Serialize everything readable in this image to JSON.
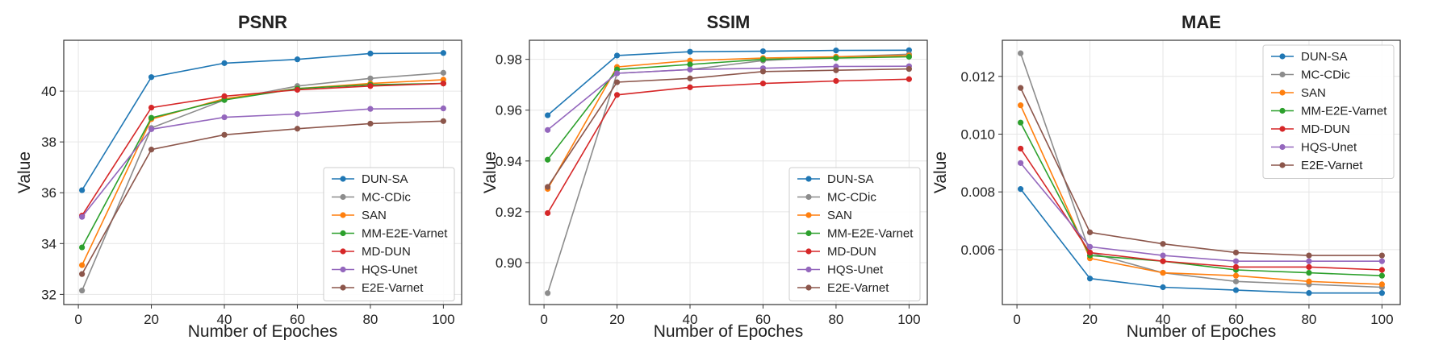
{
  "chart_data": [
    {
      "type": "line",
      "title": "PSNR",
      "xlabel": "Number of Epoches",
      "ylabel": "Value",
      "x": [
        1,
        20,
        40,
        60,
        80,
        100
      ],
      "xlim": [
        -4,
        105
      ],
      "ylim": [
        31.6,
        42.0
      ],
      "xticks": [
        0,
        20,
        40,
        60,
        80,
        100
      ],
      "yticks": [
        32,
        34,
        36,
        38,
        40
      ],
      "ytick_labels": [
        "32",
        "34",
        "36",
        "38",
        "40"
      ],
      "grid": true,
      "legend_position": "lower-right",
      "series": [
        {
          "name": "DUN-SA",
          "color": "#1f77b4",
          "values": [
            36.1,
            40.55,
            41.1,
            41.25,
            41.48,
            41.5
          ]
        },
        {
          "name": "MC-CDic",
          "color": "#8c8c8c",
          "values": [
            32.15,
            38.55,
            39.65,
            40.2,
            40.5,
            40.72
          ]
        },
        {
          "name": "SAN",
          "color": "#ff7f0e",
          "values": [
            33.15,
            38.9,
            39.7,
            40.1,
            40.3,
            40.45
          ]
        },
        {
          "name": "MM-E2E-Varnet",
          "color": "#2ca02c",
          "values": [
            33.85,
            38.95,
            39.65,
            40.1,
            40.25,
            40.3
          ]
        },
        {
          "name": "MD-DUN",
          "color": "#d62728",
          "values": [
            35.1,
            39.35,
            39.8,
            40.05,
            40.2,
            40.3
          ]
        },
        {
          "name": "HQS-Unet",
          "color": "#9467bd",
          "values": [
            35.05,
            38.5,
            38.97,
            39.1,
            39.3,
            39.32
          ]
        },
        {
          "name": "E2E-Varnet",
          "color": "#8c564b",
          "values": [
            32.8,
            37.7,
            38.28,
            38.52,
            38.72,
            38.82
          ]
        }
      ]
    },
    {
      "type": "line",
      "title": "SSIM",
      "xlabel": "Number of Epoches",
      "ylabel": "Value",
      "x": [
        1,
        20,
        40,
        60,
        80,
        100
      ],
      "xlim": [
        -4,
        105
      ],
      "ylim": [
        0.8835,
        0.9875
      ],
      "xticks": [
        0,
        20,
        40,
        60,
        80,
        100
      ],
      "yticks": [
        0.9,
        0.92,
        0.94,
        0.96,
        0.98
      ],
      "ytick_labels": [
        "0.90",
        "0.92",
        "0.94",
        "0.96",
        "0.98"
      ],
      "grid": true,
      "legend_position": "lower-right",
      "series": [
        {
          "name": "DUN-SA",
          "color": "#1f77b4",
          "values": [
            0.958,
            0.9815,
            0.983,
            0.9832,
            0.9835,
            0.9836
          ]
        },
        {
          "name": "MC-CDic",
          "color": "#8c8c8c",
          "values": [
            0.888,
            0.9745,
            0.976,
            0.9795,
            0.981,
            0.982
          ]
        },
        {
          "name": "SAN",
          "color": "#ff7f0e",
          "values": [
            0.929,
            0.977,
            0.9795,
            0.9805,
            0.981,
            0.9815
          ]
        },
        {
          "name": "MM-E2E-Varnet",
          "color": "#2ca02c",
          "values": [
            0.9405,
            0.976,
            0.978,
            0.98,
            0.9805,
            0.981
          ]
        },
        {
          "name": "MD-DUN",
          "color": "#d62728",
          "values": [
            0.9195,
            0.966,
            0.969,
            0.9705,
            0.9715,
            0.9722
          ]
        },
        {
          "name": "HQS-Unet",
          "color": "#9467bd",
          "values": [
            0.9522,
            0.9745,
            0.976,
            0.9765,
            0.9772,
            0.9773
          ]
        },
        {
          "name": "E2E-Varnet",
          "color": "#8c564b",
          "values": [
            0.9298,
            0.971,
            0.9725,
            0.9752,
            0.9757,
            0.9762
          ]
        }
      ]
    },
    {
      "type": "line",
      "title": "MAE",
      "xlabel": "Number of Epoches",
      "ylabel": "Value",
      "x": [
        1,
        20,
        40,
        60,
        80,
        100
      ],
      "xlim": [
        -4,
        105
      ],
      "ylim": [
        0.0041,
        0.01325
      ],
      "xticks": [
        0,
        20,
        40,
        60,
        80,
        100
      ],
      "yticks": [
        0.006,
        0.008,
        0.01,
        0.012
      ],
      "ytick_labels": [
        "0.006",
        "0.008",
        "0.010",
        "0.012"
      ],
      "grid": true,
      "legend_position": "upper-right",
      "series": [
        {
          "name": "DUN-SA",
          "color": "#1f77b4",
          "values": [
            0.0081,
            0.005,
            0.0047,
            0.0046,
            0.0045,
            0.0045
          ]
        },
        {
          "name": "MC-CDic",
          "color": "#8c8c8c",
          "values": [
            0.0128,
            0.0059,
            0.0052,
            0.0049,
            0.0048,
            0.0047
          ]
        },
        {
          "name": "SAN",
          "color": "#ff7f0e",
          "values": [
            0.011,
            0.0057,
            0.0052,
            0.0051,
            0.0049,
            0.0048
          ]
        },
        {
          "name": "MM-E2E-Varnet",
          "color": "#2ca02c",
          "values": [
            0.0104,
            0.0058,
            0.0056,
            0.0053,
            0.0052,
            0.0051
          ]
        },
        {
          "name": "MD-DUN",
          "color": "#d62728",
          "values": [
            0.0095,
            0.0059,
            0.0056,
            0.0054,
            0.0054,
            0.0053
          ]
        },
        {
          "name": "HQS-Unet",
          "color": "#9467bd",
          "values": [
            0.009,
            0.0061,
            0.0058,
            0.0056,
            0.0056,
            0.0056
          ]
        },
        {
          "name": "E2E-Varnet",
          "color": "#8c564b",
          "values": [
            0.0116,
            0.0066,
            0.0062,
            0.0059,
            0.0058,
            0.0058
          ]
        }
      ]
    }
  ]
}
